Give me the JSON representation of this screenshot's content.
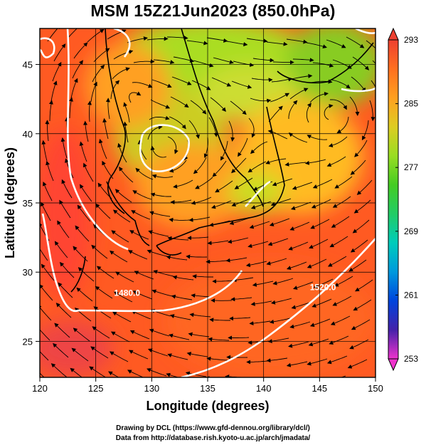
{
  "title": "MSM 15Z21Jun2023 (850.0hPa)",
  "credits": {
    "line1": "Drawing by DCL (https://www.gfd-dennou.org/library/dcl/)",
    "line2": "Data from http://database.rish.kyoto-u.ac.jp/arch/jmadata/"
  },
  "map": {
    "xlabel": "Longitude (degrees)",
    "ylabel": "Latitude  (degrees)",
    "xlim": [
      120,
      150
    ],
    "ylim": [
      22.4,
      47.6
    ],
    "xticks": [
      120,
      125,
      130,
      135,
      140,
      145,
      150
    ],
    "yticks": [
      25,
      30,
      35,
      40,
      45
    ],
    "gridlines": true,
    "contour_labels": [
      {
        "text": "1480.0",
        "lon": 127.8,
        "lat": 28.3
      },
      {
        "text": "1520.0",
        "lon": 145.3,
        "lat": 28.7
      }
    ]
  },
  "colorbar": {
    "min": 253,
    "max": 293,
    "ticks": [
      293,
      285,
      277,
      269,
      261,
      253
    ],
    "colors": [
      "#ee33cc",
      "#4422aa",
      "#0044dd",
      "#0099dd",
      "#00ccbb",
      "#22cc66",
      "#44cc22",
      "#99dd22",
      "#ddcc22",
      "#ffa020",
      "#ff7020",
      "#ee4030"
    ]
  }
}
